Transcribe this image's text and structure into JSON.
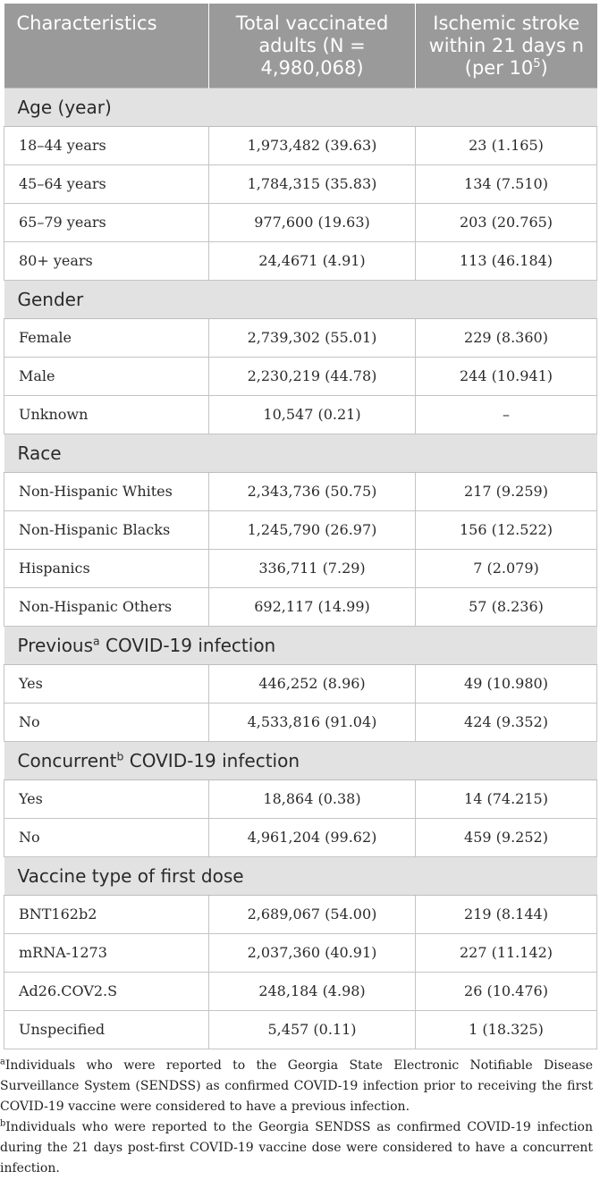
{
  "header": {
    "col1": "Characteristics",
    "col2": "Total vaccinated adults (N = 4,980,068)",
    "col3_pre": "Ischemic stroke within 21 days n (per 10",
    "col3_sup": "5",
    "col3_post": ")"
  },
  "sections": [
    {
      "title": "Age (year)",
      "rows": [
        {
          "label": "18–44 years",
          "total": "1,973,482 (39.63)",
          "stroke": "23 (1.165)"
        },
        {
          "label": "45–64 years",
          "total": "1,784,315 (35.83)",
          "stroke": "134 (7.510)"
        },
        {
          "label": "65–79 years",
          "total": "977,600 (19.63)",
          "stroke": "203 (20.765)"
        },
        {
          "label": "80+ years",
          "total": "24,4671 (4.91)",
          "stroke": "113 (46.184)"
        }
      ]
    },
    {
      "title": "Gender",
      "rows": [
        {
          "label": "Female",
          "total": "2,739,302 (55.01)",
          "stroke": "229 (8.360)"
        },
        {
          "label": "Male",
          "total": "2,230,219 (44.78)",
          "stroke": "244 (10.941)"
        },
        {
          "label": "Unknown",
          "total": "10,547 (0.21)",
          "stroke": "–"
        }
      ]
    },
    {
      "title": "Race",
      "rows": [
        {
          "label": "Non-Hispanic Whites",
          "total": "2,343,736 (50.75)",
          "stroke": "217 (9.259)"
        },
        {
          "label": "Non-Hispanic Blacks",
          "total": "1,245,790 (26.97)",
          "stroke": "156 (12.522)"
        },
        {
          "label": "Hispanics",
          "total": "336,711 (7.29)",
          "stroke": "7 (2.079)"
        },
        {
          "label": "Non-Hispanic Others",
          "total": "692,117 (14.99)",
          "stroke": "57 (8.236)"
        }
      ]
    },
    {
      "title_pre": "Previous",
      "title_sup": "a",
      "title_post": " COVID-19 infection",
      "rows": [
        {
          "label": "Yes",
          "total": "446,252 (8.96)",
          "stroke": "49 (10.980)"
        },
        {
          "label": "No",
          "total": "4,533,816 (91.04)",
          "stroke": "424 (9.352)"
        }
      ]
    },
    {
      "title_pre": "Concurrent",
      "title_sup": "b",
      "title_post": " COVID-19 infection",
      "rows": [
        {
          "label": "Yes",
          "total": "18,864 (0.38)",
          "stroke": "14 (74.215)"
        },
        {
          "label": "No",
          "total": "4,961,204 (99.62)",
          "stroke": "459 (9.252)"
        }
      ]
    },
    {
      "title": "Vaccine type of first dose",
      "rows": [
        {
          "label": "BNT162b2",
          "total": "2,689,067 (54.00)",
          "stroke": "219 (8.144)"
        },
        {
          "label": "mRNA-1273",
          "total": "2,037,360 (40.91)",
          "stroke": "227 (11.142)"
        },
        {
          "label": "Ad26.COV2.S",
          "total": "248,184 (4.98)",
          "stroke": "26 (10.476)"
        },
        {
          "label": "Unspecified",
          "total": "5,457 (0.11)",
          "stroke": "1 (18.325)"
        }
      ]
    }
  ],
  "footnotes": [
    {
      "mark": "a",
      "text": "Individuals who were reported to the Georgia State Electronic Notifiable Disease Surveillance System (SENDSS) as confirmed COVID-19 infection prior to receiving the first COVID-19 vaccine were considered to have a previous infection."
    },
    {
      "mark": "b",
      "text": "Individuals who were reported to the Georgia SENDSS as confirmed COVID-19 infection during the 21 days post-first COVID-19 vaccine dose were considered to have a concurrent infection."
    }
  ]
}
